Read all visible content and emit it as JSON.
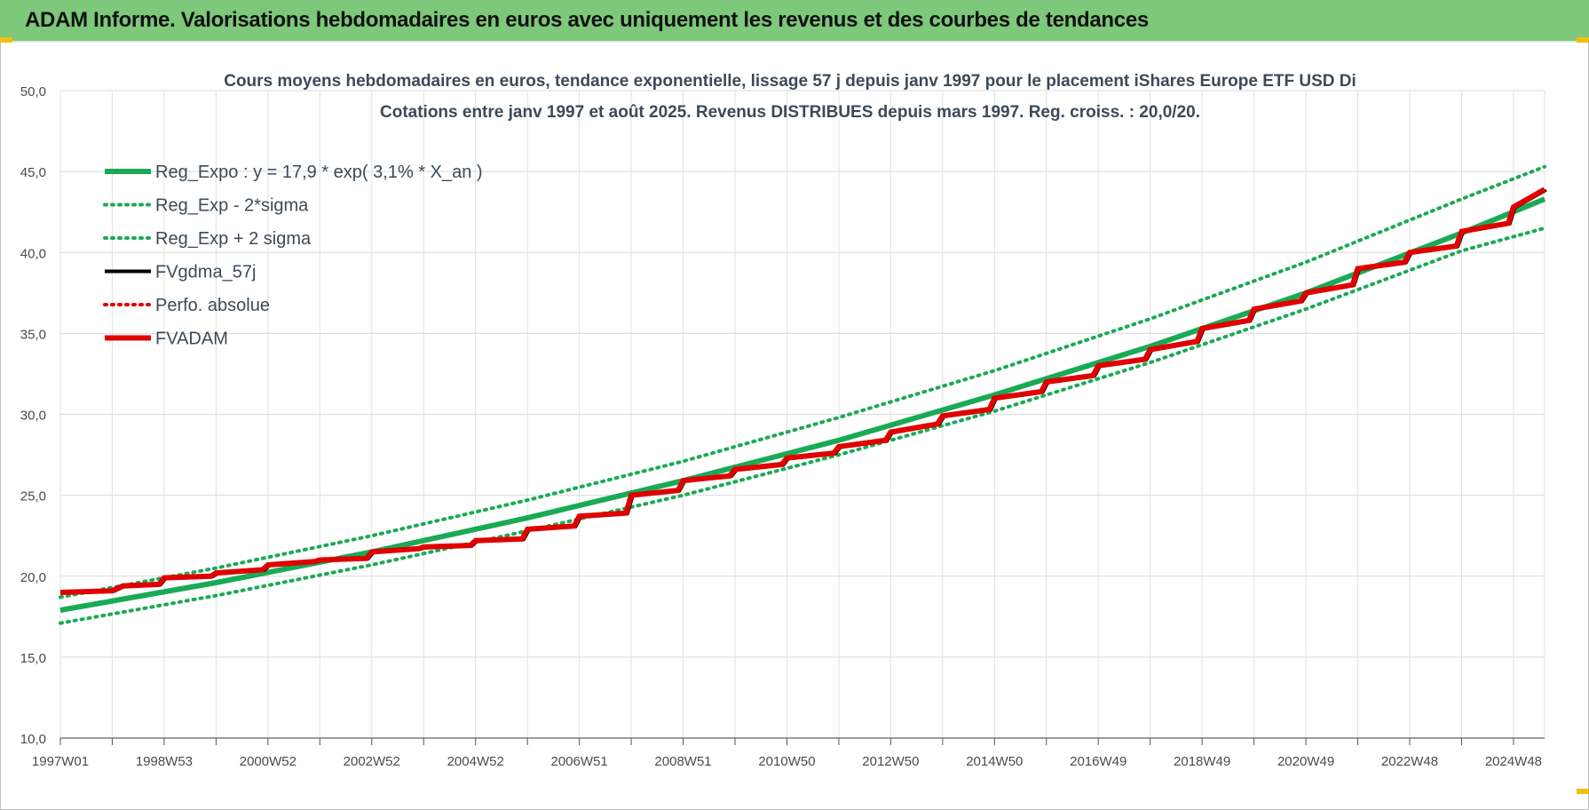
{
  "banner": {
    "title": "ADAM Informe. Valorisations hebdomadaires en euros avec uniquement les revenus et des courbes de tendances"
  },
  "chart_data": {
    "type": "line",
    "title_line1": "Cours moyens hebdomadaires en euros, tendance exponentielle, lissage 57 j depuis janv 1997  pour le placement iShares Europe ETF USD Di",
    "title_line2": "Cotations entre janv 1997 et août 2025.  Revenus DISTRIBUES depuis mars 1997. Reg. croiss. : 20,0/20.",
    "xlabel": "",
    "ylabel": "",
    "ylim": [
      10,
      50
    ],
    "xlim": [
      1997.0,
      2025.6
    ],
    "grid": true,
    "legend_position": "top-left",
    "y_ticks": [
      "10,0",
      "15,0",
      "20,0",
      "25,0",
      "30,0",
      "35,0",
      "40,0",
      "45,0",
      "50,0"
    ],
    "y_tick_values": [
      10,
      15,
      20,
      25,
      30,
      35,
      40,
      45,
      50
    ],
    "x_ticks": [
      "1997W01",
      "1998W53",
      "2000W52",
      "2002W52",
      "2004W52",
      "2006W51",
      "2008W51",
      "2010W50",
      "2012W50",
      "2014W50",
      "2016W49",
      "2018W49",
      "2020W49",
      "2022W48",
      "2024W48"
    ],
    "x_tick_values": [
      1997.0,
      1999.0,
      2001.0,
      2003.0,
      2005.0,
      2007.0,
      2009.0,
      2011.0,
      2013.0,
      2015.0,
      2017.0,
      2019.0,
      2021.0,
      2023.0,
      2025.0
    ],
    "legend": [
      {
        "label": "Reg_Expo : y = 17,9 * exp( 3,1% *  X_an )",
        "color": "#1aaa55",
        "style": "solid-thick"
      },
      {
        "label": "Reg_Exp - 2*sigma",
        "color": "#1aaa55",
        "style": "dotted"
      },
      {
        "label": "Reg_Exp + 2 sigma",
        "color": "#1aaa55",
        "style": "dotted"
      },
      {
        "label": "FVgdma_57j",
        "color": "#000000",
        "style": "solid"
      },
      {
        "label": "Perfo. absolue",
        "color": "#e00000",
        "style": "dotted"
      },
      {
        "label": "FVADAM",
        "color": "#e00000",
        "style": "solid-thick"
      }
    ],
    "series": [
      {
        "name": "Reg_Expo : y = 17,9 * exp( 3,1% *  X_an )",
        "color": "#1aaa55",
        "x": [
          1997.0,
          2000.0,
          2003.0,
          2006.0,
          2009.0,
          2012.0,
          2015.0,
          2018.0,
          2021.0,
          2024.0,
          2025.6
        ],
        "values": [
          17.9,
          19.6,
          21.5,
          23.6,
          25.9,
          28.4,
          31.2,
          34.2,
          37.5,
          41.2,
          43.3
        ]
      },
      {
        "name": "Reg_Exp - 2*sigma",
        "color": "#1aaa55",
        "x": [
          1997.0,
          2000.0,
          2003.0,
          2006.0,
          2009.0,
          2012.0,
          2015.0,
          2018.0,
          2021.0,
          2024.0,
          2025.6
        ],
        "values": [
          17.1,
          18.8,
          20.7,
          22.8,
          25.0,
          27.5,
          30.2,
          33.2,
          36.5,
          40.1,
          41.5
        ]
      },
      {
        "name": "Reg_Exp + 2 sigma",
        "color": "#1aaa55",
        "x": [
          1997.0,
          2000.0,
          2003.0,
          2006.0,
          2009.0,
          2012.0,
          2015.0,
          2018.0,
          2021.0,
          2024.0,
          2025.6
        ],
        "values": [
          18.7,
          20.5,
          22.5,
          24.7,
          27.1,
          29.8,
          32.7,
          35.9,
          39.4,
          43.3,
          45.3
        ]
      },
      {
        "name": "FVADAM",
        "color": "#e00000",
        "x": [
          1997.0,
          1998.0,
          1998.2,
          1998.9,
          1999.0,
          1999.9,
          2000.0,
          2000.9,
          2001.0,
          2001.9,
          2002.0,
          2002.9,
          2003.0,
          2003.9,
          2004.0,
          2004.9,
          2005.0,
          2005.9,
          2006.0,
          2006.9,
          2007.0,
          2007.9,
          2008.0,
          2008.9,
          2009.0,
          2009.9,
          2010.0,
          2010.9,
          2011.0,
          2011.9,
          2012.0,
          2012.9,
          2013.0,
          2013.9,
          2014.0,
          2014.9,
          2015.0,
          2015.9,
          2016.0,
          2016.9,
          2017.0,
          2017.9,
          2018.0,
          2018.9,
          2019.0,
          2019.9,
          2020.0,
          2020.9,
          2021.0,
          2021.9,
          2022.0,
          2022.9,
          2023.0,
          2023.9,
          2024.0,
          2024.9,
          2025.0,
          2025.6
        ],
        "values": [
          19.0,
          19.1,
          19.4,
          19.5,
          19.9,
          20.0,
          20.2,
          20.4,
          20.7,
          20.9,
          21.0,
          21.1,
          21.5,
          21.7,
          21.8,
          21.9,
          22.2,
          22.3,
          22.9,
          23.1,
          23.7,
          23.9,
          25.0,
          25.3,
          25.9,
          26.2,
          26.6,
          26.9,
          27.3,
          27.6,
          28.0,
          28.4,
          28.9,
          29.4,
          29.9,
          30.3,
          31.0,
          31.4,
          32.0,
          32.4,
          33.0,
          33.4,
          34.0,
          34.5,
          35.3,
          35.8,
          36.5,
          37.0,
          37.5,
          38.0,
          39.0,
          39.4,
          40.0,
          40.4,
          41.3,
          41.8,
          42.8,
          43.9
        ]
      }
    ]
  }
}
